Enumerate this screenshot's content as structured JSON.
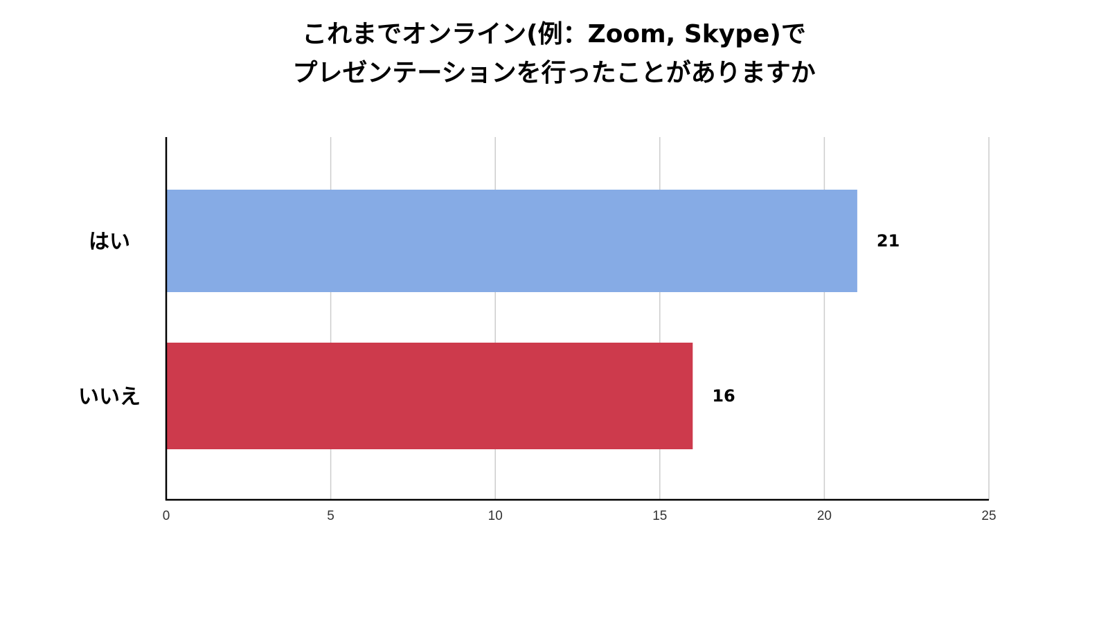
{
  "chart_data": {
    "type": "bar",
    "orientation": "horizontal",
    "title_lines": [
      "これまでオンライン(例：Zoom, Skype)で",
      "プレゼンテーションを行ったことがありますか"
    ],
    "categories": [
      "はい",
      "いいえ"
    ],
    "values": [
      21,
      16
    ],
    "value_labels": [
      "21",
      "16"
    ],
    "colors": [
      "#86abe5",
      "#cd3a4c"
    ],
    "xlim": [
      0,
      25
    ],
    "x_ticks": [
      0,
      5,
      10,
      15,
      20,
      25
    ],
    "x_tick_labels": [
      "0",
      "5",
      "10",
      "15",
      "20",
      "25"
    ],
    "grid": true,
    "legend": "none"
  }
}
